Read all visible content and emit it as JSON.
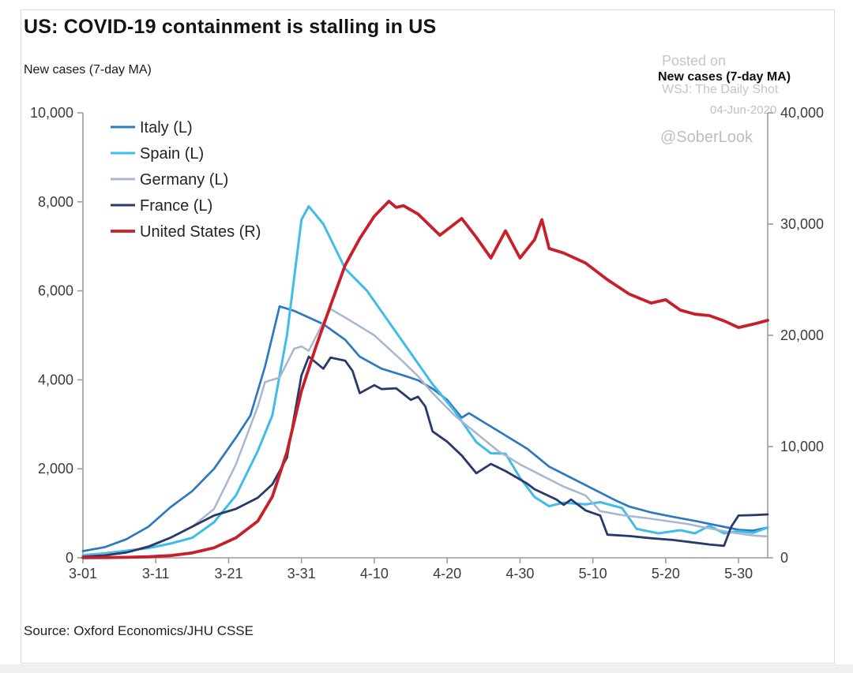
{
  "page": {
    "title": "US: COVID-19 containment is stalling in US",
    "left_axis_title": "New cases (7-day MA)",
    "right_axis_title": "New cases (7-day MA)",
    "watermark": {
      "posted_on": "Posted on",
      "outlet": "WSJ: The Daily Shot",
      "date": "04-Jun-2020",
      "handle": "@SoberLook"
    },
    "source": "Source: Oxford Economics/JHU CSSE"
  },
  "chart_data": {
    "type": "line",
    "title": "US: COVID-19 containment is stalling in US",
    "xlabel": "",
    "ylabel_left": "New cases (7-day MA)",
    "ylabel_right": "New cases (7-day MA)",
    "grid": false,
    "legend_position": "top-left",
    "x_unit": "days since 2020-03-01",
    "x_axis": {
      "domain_days": [
        0,
        94
      ],
      "tick_days": [
        0,
        10,
        20,
        30,
        40,
        50,
        60,
        70,
        80,
        90
      ],
      "tick_labels": [
        "3-01",
        "3-11",
        "3-21",
        "3-31",
        "4-10",
        "4-20",
        "4-30",
        "5-10",
        "5-20",
        "5-30"
      ]
    },
    "left_axis": {
      "range": [
        0,
        10000
      ],
      "ticks": [
        0,
        2000,
        4000,
        6000,
        8000,
        10000
      ],
      "tick_labels": [
        "0",
        "2,000",
        "4,000",
        "6,000",
        "8,000",
        "10,000"
      ]
    },
    "right_axis": {
      "range": [
        0,
        40000
      ],
      "ticks": [
        0,
        10000,
        20000,
        30000,
        40000
      ],
      "tick_labels": [
        "0",
        "10,000",
        "20,000",
        "30,000",
        "40,000"
      ]
    },
    "series": [
      {
        "name": "Italy (L)",
        "axis": "left",
        "color": "#2E78C2",
        "stroke_width": 2.7,
        "points": [
          [
            0,
            150
          ],
          [
            3,
            240
          ],
          [
            6,
            420
          ],
          [
            9,
            700
          ],
          [
            12,
            1135
          ],
          [
            15,
            1500
          ],
          [
            18,
            2000
          ],
          [
            21,
            2700
          ],
          [
            23,
            3200
          ],
          [
            25,
            4300
          ],
          [
            27,
            5650
          ],
          [
            29,
            5550
          ],
          [
            31,
            5400
          ],
          [
            33,
            5250
          ],
          [
            36,
            4900
          ],
          [
            38,
            4520
          ],
          [
            41,
            4250
          ],
          [
            44,
            4100
          ],
          [
            46,
            3990
          ],
          [
            48,
            3800
          ],
          [
            50,
            3550
          ],
          [
            52,
            3150
          ],
          [
            53,
            3250
          ],
          [
            55,
            3050
          ],
          [
            58,
            2750
          ],
          [
            61,
            2450
          ],
          [
            64,
            2050
          ],
          [
            67,
            1800
          ],
          [
            70,
            1550
          ],
          [
            73,
            1300
          ],
          [
            75,
            1150
          ],
          [
            78,
            1020
          ],
          [
            81,
            920
          ],
          [
            84,
            830
          ],
          [
            87,
            730
          ],
          [
            90,
            630
          ],
          [
            92,
            610
          ],
          [
            94,
            680
          ]
        ]
      },
      {
        "name": "Spain (L)",
        "axis": "left",
        "color": "#3EBDE9",
        "stroke_width": 3,
        "points": [
          [
            0,
            60
          ],
          [
            3,
            100
          ],
          [
            6,
            160
          ],
          [
            9,
            220
          ],
          [
            12,
            320
          ],
          [
            15,
            450
          ],
          [
            18,
            800
          ],
          [
            21,
            1400
          ],
          [
            24,
            2400
          ],
          [
            26,
            3200
          ],
          [
            28,
            5000
          ],
          [
            30,
            7600
          ],
          [
            31,
            7900
          ],
          [
            33,
            7500
          ],
          [
            36,
            6500
          ],
          [
            39,
            6000
          ],
          [
            42,
            5300
          ],
          [
            45,
            4600
          ],
          [
            48,
            3900
          ],
          [
            51,
            3300
          ],
          [
            54,
            2600
          ],
          [
            56,
            2350
          ],
          [
            58,
            2340
          ],
          [
            60,
            1800
          ],
          [
            62,
            1365
          ],
          [
            64,
            1160
          ],
          [
            66,
            1240
          ],
          [
            69,
            1200
          ],
          [
            71,
            1250
          ],
          [
            74,
            1120
          ],
          [
            76,
            650
          ],
          [
            79,
            550
          ],
          [
            82,
            620
          ],
          [
            84,
            550
          ],
          [
            86,
            720
          ],
          [
            88,
            550
          ],
          [
            90,
            600
          ],
          [
            92,
            560
          ],
          [
            94,
            680
          ]
        ]
      },
      {
        "name": "Germany (L)",
        "axis": "left",
        "color": "#A9B6D0",
        "stroke_width": 2.5,
        "points": [
          [
            0,
            40
          ],
          [
            3,
            70
          ],
          [
            6,
            130
          ],
          [
            9,
            260
          ],
          [
            12,
            450
          ],
          [
            15,
            700
          ],
          [
            18,
            1100
          ],
          [
            21,
            2100
          ],
          [
            24,
            3400
          ],
          [
            25,
            3950
          ],
          [
            27,
            4050
          ],
          [
            29,
            4700
          ],
          [
            30,
            4750
          ],
          [
            31,
            4650
          ],
          [
            33,
            5300
          ],
          [
            34,
            5590
          ],
          [
            36,
            5400
          ],
          [
            38,
            5200
          ],
          [
            40,
            5000
          ],
          [
            42,
            4700
          ],
          [
            44,
            4400
          ],
          [
            46,
            4080
          ],
          [
            48,
            3700
          ],
          [
            51,
            3200
          ],
          [
            54,
            2800
          ],
          [
            57,
            2400
          ],
          [
            60,
            2100
          ],
          [
            63,
            1850
          ],
          [
            66,
            1600
          ],
          [
            69,
            1400
          ],
          [
            71,
            1050
          ],
          [
            74,
            960
          ],
          [
            77,
            900
          ],
          [
            80,
            830
          ],
          [
            83,
            760
          ],
          [
            86,
            660
          ],
          [
            89,
            570
          ],
          [
            92,
            500
          ],
          [
            94,
            480
          ]
        ]
      },
      {
        "name": "France (L)",
        "axis": "left",
        "color": "#28396B",
        "stroke_width": 2.8,
        "points": [
          [
            0,
            25
          ],
          [
            3,
            55
          ],
          [
            6,
            120
          ],
          [
            9,
            250
          ],
          [
            12,
            450
          ],
          [
            15,
            700
          ],
          [
            18,
            950
          ],
          [
            21,
            1100
          ],
          [
            24,
            1350
          ],
          [
            26,
            1650
          ],
          [
            28,
            2250
          ],
          [
            30,
            4100
          ],
          [
            31,
            4520
          ],
          [
            33,
            4250
          ],
          [
            34,
            4500
          ],
          [
            36,
            4430
          ],
          [
            37,
            4200
          ],
          [
            38,
            3700
          ],
          [
            40,
            3880
          ],
          [
            41,
            3790
          ],
          [
            43,
            3810
          ],
          [
            45,
            3550
          ],
          [
            46,
            3620
          ],
          [
            47,
            3400
          ],
          [
            48,
            2840
          ],
          [
            50,
            2610
          ],
          [
            52,
            2300
          ],
          [
            54,
            1900
          ],
          [
            56,
            2110
          ],
          [
            58,
            1950
          ],
          [
            61,
            1665
          ],
          [
            62,
            1540
          ],
          [
            65,
            1310
          ],
          [
            66,
            1190
          ],
          [
            67,
            1310
          ],
          [
            69,
            1065
          ],
          [
            71,
            950
          ],
          [
            72,
            520
          ],
          [
            75,
            490
          ],
          [
            78,
            440
          ],
          [
            81,
            400
          ],
          [
            84,
            340
          ],
          [
            86,
            300
          ],
          [
            88,
            270
          ],
          [
            89,
            700
          ],
          [
            90,
            950
          ],
          [
            92,
            960
          ],
          [
            94,
            975
          ]
        ]
      },
      {
        "name": "United States (R)",
        "axis": "right",
        "color": "#C8202A",
        "stroke_width": 3.8,
        "points": [
          [
            0,
            10
          ],
          [
            3,
            20
          ],
          [
            6,
            40
          ],
          [
            9,
            90
          ],
          [
            12,
            200
          ],
          [
            15,
            450
          ],
          [
            18,
            900
          ],
          [
            21,
            1800
          ],
          [
            24,
            3300
          ],
          [
            26,
            5500
          ],
          [
            28,
            9500
          ],
          [
            30,
            15000
          ],
          [
            32,
            19000
          ],
          [
            34,
            22700
          ],
          [
            36,
            26300
          ],
          [
            38,
            28700
          ],
          [
            40,
            30700
          ],
          [
            42,
            32050
          ],
          [
            43,
            31500
          ],
          [
            44,
            31650
          ],
          [
            46,
            30900
          ],
          [
            49,
            29000
          ],
          [
            52,
            30500
          ],
          [
            54,
            28800
          ],
          [
            56,
            26950
          ],
          [
            58,
            29400
          ],
          [
            60,
            26950
          ],
          [
            62,
            28600
          ],
          [
            63,
            30400
          ],
          [
            64,
            27800
          ],
          [
            66,
            27400
          ],
          [
            69,
            26500
          ],
          [
            72,
            25000
          ],
          [
            75,
            23700
          ],
          [
            78,
            22900
          ],
          [
            80,
            23200
          ],
          [
            82,
            22270
          ],
          [
            84,
            21900
          ],
          [
            86,
            21770
          ],
          [
            88,
            21300
          ],
          [
            90,
            20700
          ],
          [
            92,
            21000
          ],
          [
            94,
            21350
          ]
        ]
      }
    ]
  }
}
